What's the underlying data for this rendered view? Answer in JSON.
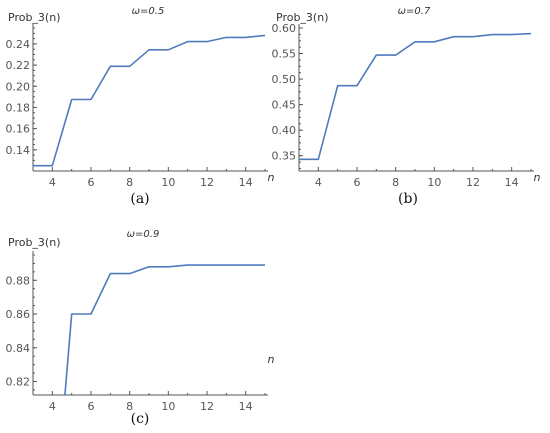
{
  "colors": {
    "series": "#4f7bbd",
    "axis": "#555555"
  },
  "chart_data": [
    {
      "type": "line",
      "title": "ω=0.5",
      "ylabel": "Prob_3(n)",
      "xlabel": "n",
      "caption": "(a)",
      "xlim": [
        3,
        15
      ],
      "ylim": [
        0.12,
        0.255
      ],
      "xticks": [
        4,
        6,
        8,
        10,
        12,
        14
      ],
      "xtick_labels": [
        "4",
        "6",
        "8",
        "10",
        "12",
        "14"
      ],
      "yticks": [
        0.14,
        0.16,
        0.18,
        0.2,
        0.22,
        0.24
      ],
      "ytick_labels": [
        "0.14",
        "0.16",
        "0.18",
        "0.20",
        "0.22",
        "0.24"
      ],
      "x": [
        3,
        4,
        5,
        6,
        7,
        8,
        9,
        10,
        11,
        12,
        13,
        14,
        15
      ],
      "values": [
        0.125,
        0.125,
        0.1875,
        0.1875,
        0.2188,
        0.2188,
        0.2344,
        0.2344,
        0.2422,
        0.2422,
        0.2461,
        0.2461,
        0.248
      ],
      "grid": false
    },
    {
      "type": "line",
      "title": "ω=0.7",
      "ylabel": "Prob_3(n)",
      "xlabel": "n",
      "caption": "(b)",
      "xlim": [
        3,
        15
      ],
      "ylim": [
        0.32,
        0.6
      ],
      "xticks": [
        4,
        6,
        8,
        10,
        12,
        14
      ],
      "xtick_labels": [
        "4",
        "6",
        "8",
        "10",
        "12",
        "14"
      ],
      "yticks": [
        0.35,
        0.4,
        0.45,
        0.5,
        0.55,
        0.6
      ],
      "ytick_labels": [
        "0.35",
        "0.40",
        "0.45",
        "0.50",
        "0.55",
        "0.60"
      ],
      "x": [
        3,
        4,
        5,
        6,
        7,
        8,
        9,
        10,
        11,
        12,
        13,
        14,
        15
      ],
      "values": [
        0.343,
        0.343,
        0.487,
        0.487,
        0.547,
        0.547,
        0.573,
        0.573,
        0.583,
        0.583,
        0.587,
        0.587,
        0.589
      ],
      "grid": false
    },
    {
      "type": "line",
      "title": "ω=0.9",
      "ylabel": "Prob_3(n)",
      "xlabel": "n",
      "caption": "(c)",
      "xlim": [
        3,
        15
      ],
      "ylim": [
        0.812,
        0.895
      ],
      "xticks": [
        4,
        6,
        8,
        10,
        12,
        14
      ],
      "xtick_labels": [
        "4",
        "6",
        "8",
        "10",
        "12",
        "14"
      ],
      "yticks": [
        0.82,
        0.84,
        0.86,
        0.88
      ],
      "ytick_labels": [
        "0.82",
        "0.84",
        "0.86",
        "0.88"
      ],
      "x": [
        4.65,
        5,
        6,
        7,
        8,
        9,
        10,
        11,
        12,
        13,
        14,
        15
      ],
      "values": [
        0.812,
        0.86,
        0.86,
        0.884,
        0.884,
        0.888,
        0.888,
        0.889,
        0.889,
        0.889,
        0.889,
        0.889
      ],
      "grid": false
    }
  ]
}
